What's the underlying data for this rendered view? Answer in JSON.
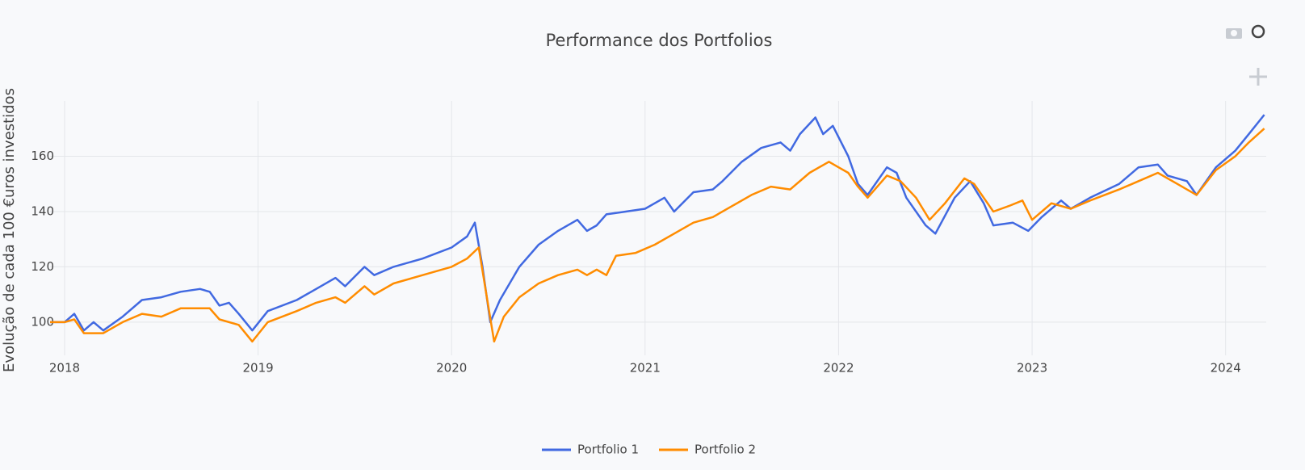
{
  "chart_data": {
    "type": "line",
    "title": "Performance dos Portfolios",
    "y_label": "Evolução de cada 100 €uros investidos",
    "xlim": [
      2017.925,
      2024.21
    ],
    "xticks": [
      2018,
      2019,
      2020,
      2021,
      2022,
      2023,
      2024
    ],
    "ylim": [
      88,
      180
    ],
    "yticks": [
      100,
      120,
      140,
      160
    ],
    "grid": true,
    "legend": "bottom",
    "series": [
      {
        "name": "Portfolio 1",
        "color": "#4169e1",
        "x": [
          2017.925,
          2018.0,
          2018.05,
          2018.1,
          2018.15,
          2018.2,
          2018.3,
          2018.4,
          2018.5,
          2018.6,
          2018.7,
          2018.75,
          2018.8,
          2018.85,
          2018.9,
          2018.97,
          2019.05,
          2019.2,
          2019.3,
          2019.4,
          2019.45,
          2019.55,
          2019.6,
          2019.7,
          2019.85,
          2020.0,
          2020.08,
          2020.12,
          2020.16,
          2020.2,
          2020.25,
          2020.35,
          2020.45,
          2020.55,
          2020.65,
          2020.7,
          2020.75,
          2020.8,
          2020.9,
          2021.0,
          2021.1,
          2021.15,
          2021.25,
          2021.35,
          2021.4,
          2021.5,
          2021.6,
          2021.7,
          2021.75,
          2021.8,
          2021.88,
          2021.92,
          2021.97,
          2022.05,
          2022.1,
          2022.15,
          2022.25,
          2022.3,
          2022.35,
          2022.45,
          2022.5,
          2022.6,
          2022.68,
          2022.75,
          2022.8,
          2022.9,
          2022.98,
          2023.05,
          2023.15,
          2023.2,
          2023.3,
          2023.45,
          2023.55,
          2023.65,
          2023.7,
          2023.8,
          2023.85,
          2023.95,
          2024.05,
          2024.12,
          2024.2
        ],
        "values": [
          100,
          100,
          103,
          97,
          100,
          97,
          102,
          108,
          109,
          111,
          112,
          111,
          106,
          107,
          103,
          97,
          104,
          108,
          112,
          116,
          113,
          120,
          117,
          120,
          123,
          127,
          131,
          136,
          120,
          100,
          108,
          120,
          128,
          133,
          137,
          133,
          135,
          139,
          140,
          141,
          145,
          140,
          147,
          148,
          151,
          158,
          163,
          165,
          162,
          168,
          174,
          168,
          171,
          160,
          150,
          146,
          156,
          154,
          145,
          135,
          132,
          145,
          151,
          143,
          135,
          136,
          133,
          138,
          144,
          141,
          145,
          150,
          156,
          157,
          153,
          151,
          146,
          156,
          162,
          168,
          175
        ]
      },
      {
        "name": "Portfolio 2",
        "color": "#ff8c00",
        "x": [
          2017.925,
          2018.0,
          2018.05,
          2018.1,
          2018.2,
          2018.3,
          2018.4,
          2018.5,
          2018.6,
          2018.75,
          2018.8,
          2018.9,
          2018.97,
          2019.05,
          2019.2,
          2019.3,
          2019.4,
          2019.45,
          2019.55,
          2019.6,
          2019.7,
          2019.85,
          2020.0,
          2020.08,
          2020.14,
          2020.18,
          2020.22,
          2020.27,
          2020.35,
          2020.45,
          2020.55,
          2020.65,
          2020.7,
          2020.75,
          2020.8,
          2020.85,
          2020.95,
          2021.05,
          2021.15,
          2021.25,
          2021.35,
          2021.45,
          2021.55,
          2021.65,
          2021.75,
          2021.85,
          2021.95,
          2022.0,
          2022.05,
          2022.1,
          2022.15,
          2022.25,
          2022.32,
          2022.4,
          2022.47,
          2022.55,
          2022.65,
          2022.7,
          2022.8,
          2022.88,
          2022.95,
          2023.0,
          2023.1,
          2023.2,
          2023.3,
          2023.45,
          2023.55,
          2023.65,
          2023.75,
          2023.85,
          2023.95,
          2024.05,
          2024.12,
          2024.2
        ],
        "values": [
          100,
          100,
          101,
          96,
          96,
          100,
          103,
          102,
          105,
          105,
          101,
          99,
          93,
          100,
          104,
          107,
          109,
          107,
          113,
          110,
          114,
          117,
          120,
          123,
          127,
          110,
          93,
          102,
          109,
          114,
          117,
          119,
          117,
          119,
          117,
          124,
          125,
          128,
          132,
          136,
          138,
          142,
          146,
          149,
          148,
          154,
          158,
          156,
          154,
          149,
          145,
          153,
          151,
          145,
          137,
          143,
          152,
          150,
          140,
          142,
          144,
          137,
          143,
          141,
          144,
          148,
          151,
          154,
          150,
          146,
          155,
          160,
          165,
          170
        ]
      }
    ]
  }
}
